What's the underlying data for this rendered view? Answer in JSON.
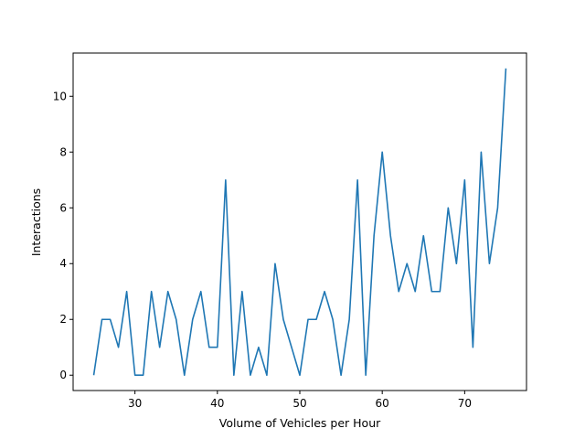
{
  "chart_data": {
    "type": "line",
    "title": "",
    "xlabel": "Volume of Vehicles per Hour",
    "ylabel": "Interactions",
    "xlim": [
      22.5,
      77.5
    ],
    "ylim": [
      -0.55,
      11.55
    ],
    "x_ticks": [
      30,
      40,
      50,
      60,
      70
    ],
    "y_ticks": [
      0,
      2,
      4,
      6,
      8,
      10
    ],
    "x_tick_labels": [
      "30",
      "40",
      "50",
      "60",
      "70"
    ],
    "y_tick_labels": [
      "0",
      "2",
      "4",
      "6",
      "8",
      "10"
    ],
    "grid": false,
    "legend": "none",
    "series": [
      {
        "color": "#1f77b4",
        "x": [
          25,
          26,
          27,
          28,
          29,
          30,
          31,
          32,
          33,
          34,
          35,
          36,
          37,
          38,
          39,
          40,
          41,
          42,
          43,
          44,
          45,
          46,
          47,
          48,
          49,
          50,
          51,
          52,
          53,
          54,
          55,
          56,
          57,
          58,
          59,
          60,
          61,
          62,
          63,
          64,
          65,
          66,
          67,
          68,
          69,
          70,
          71,
          72,
          73,
          74,
          75
        ],
        "y": [
          0,
          2,
          2,
          1,
          3,
          0,
          0,
          3,
          1,
          3,
          2,
          0,
          2,
          3,
          1,
          1,
          7,
          0,
          3,
          0,
          1,
          0,
          4,
          2,
          1,
          0,
          2,
          2,
          3,
          2,
          0,
          2,
          7,
          0,
          5,
          8,
          5,
          3,
          4,
          3,
          5,
          3,
          3,
          6,
          4,
          7,
          1,
          8,
          4,
          6,
          11
        ]
      }
    ]
  }
}
